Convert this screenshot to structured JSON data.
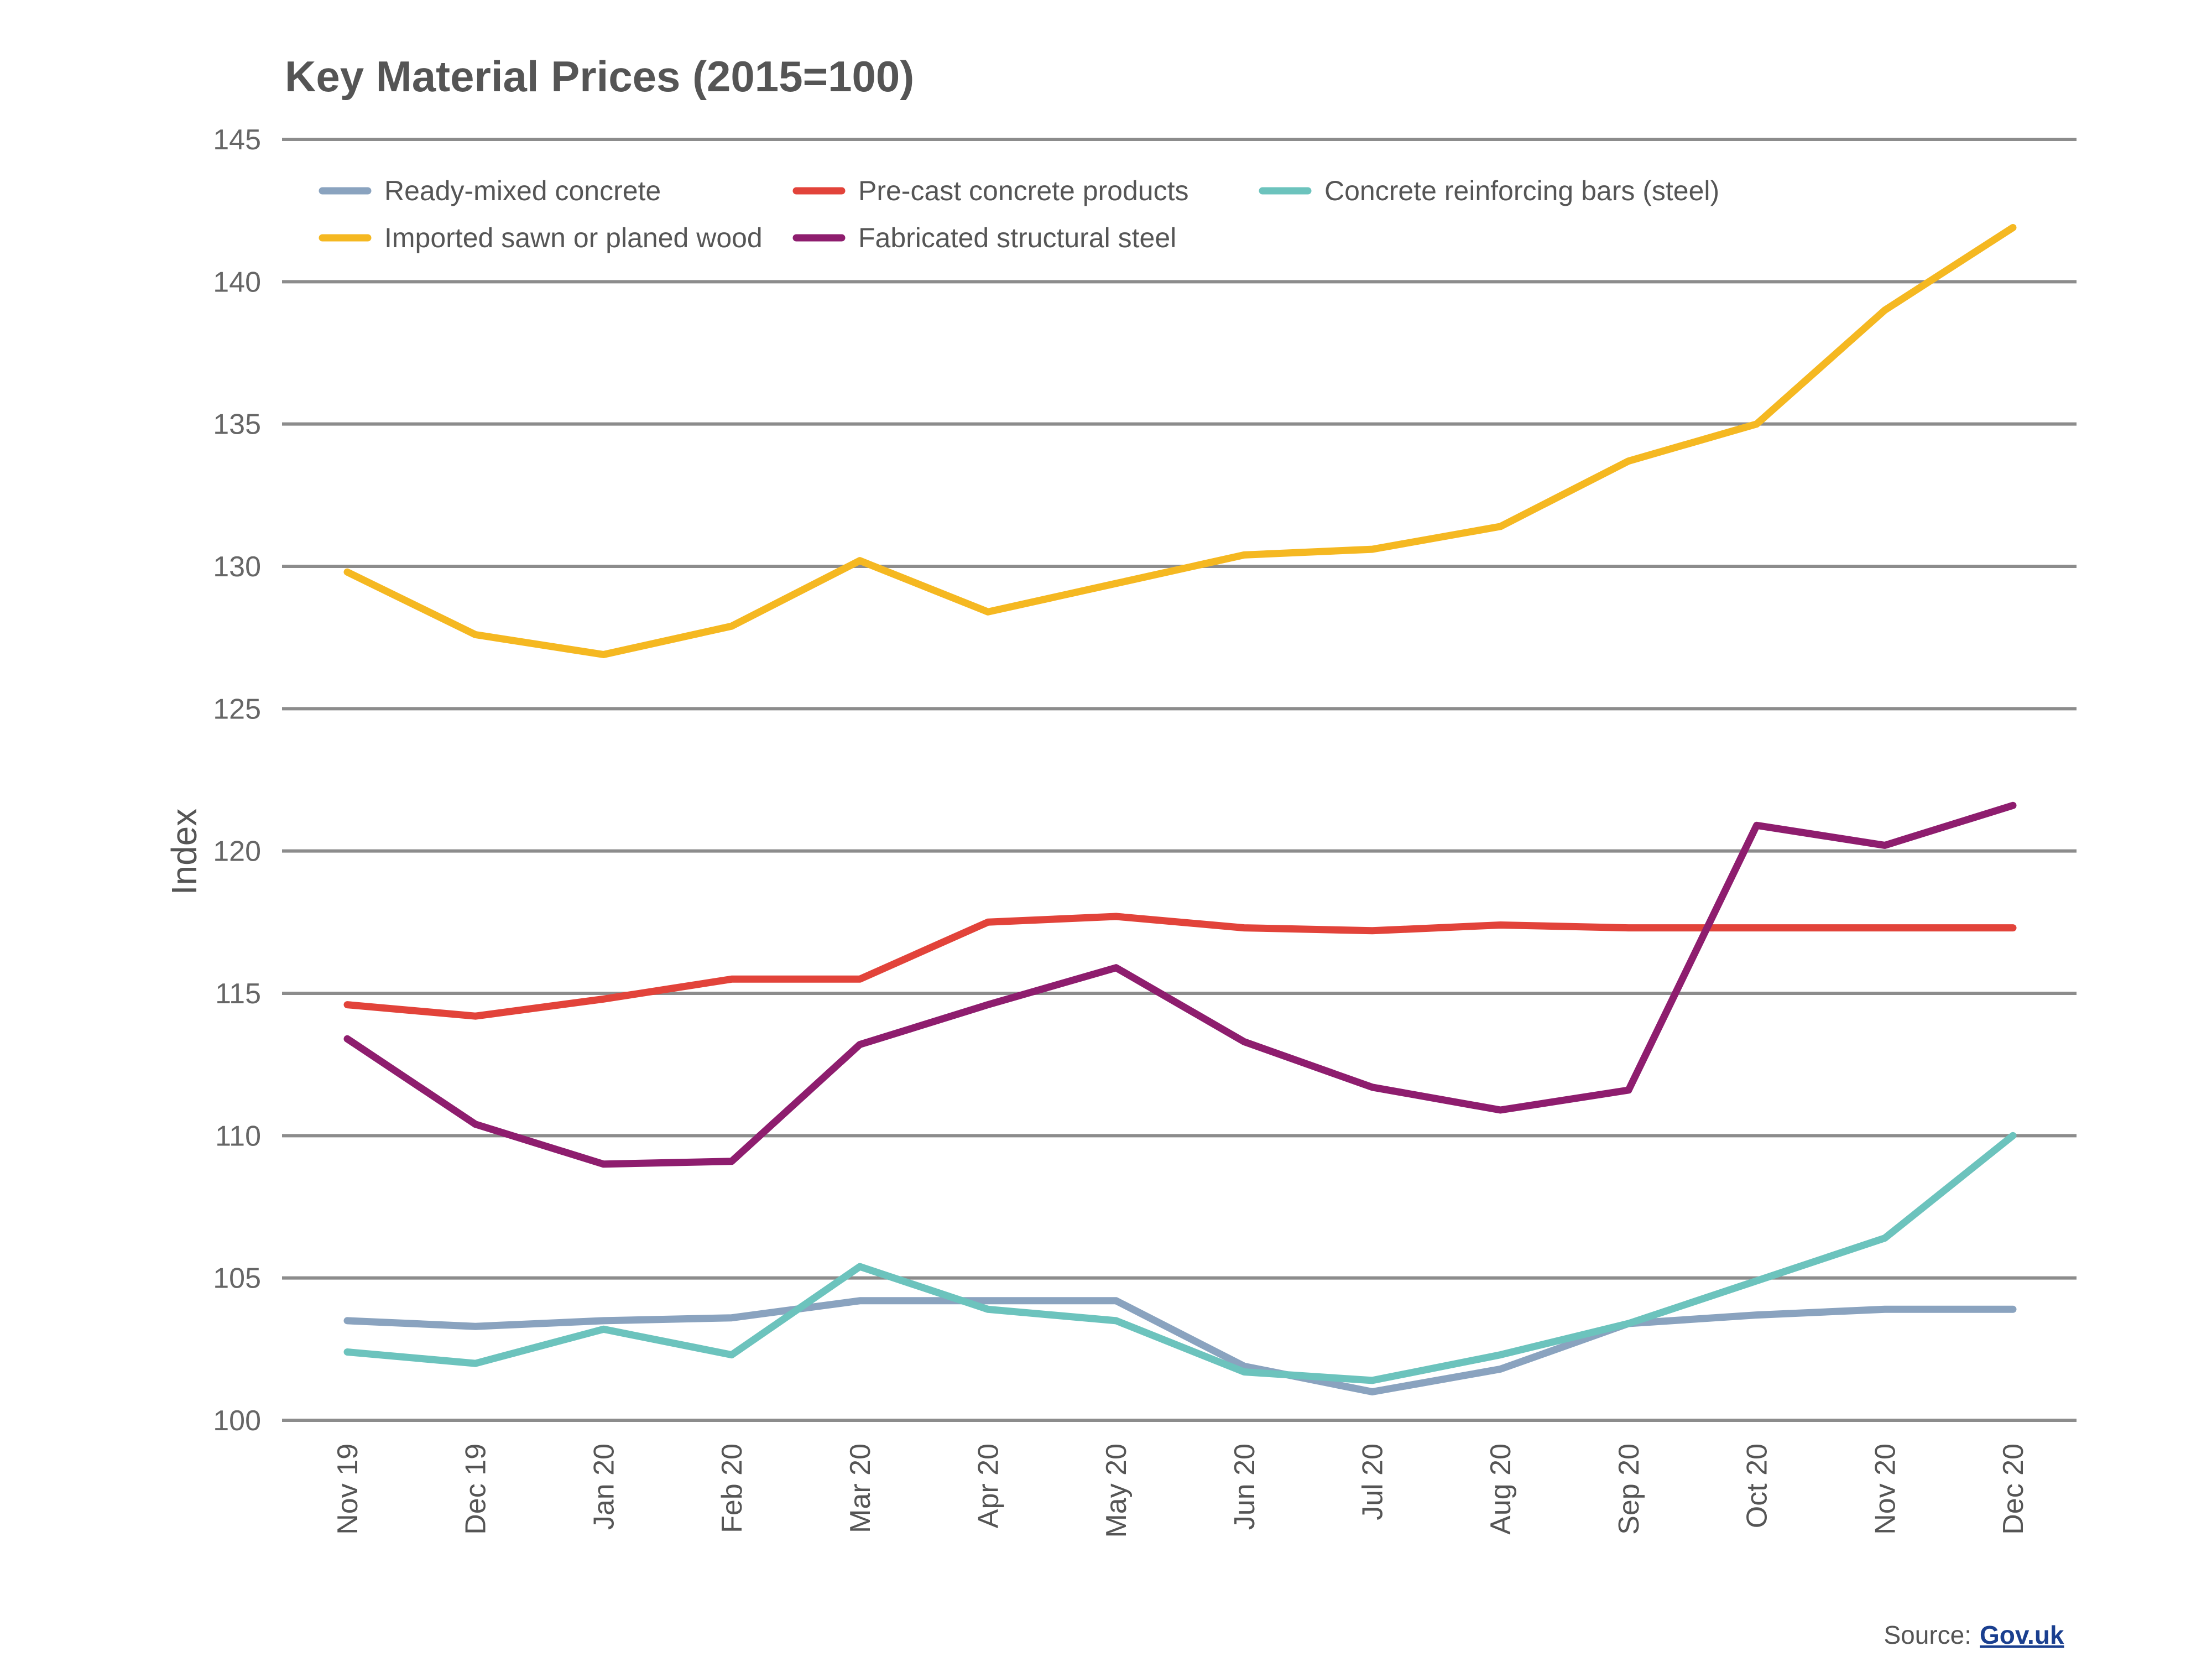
{
  "chart_data": {
    "type": "line",
    "title": "Key Material Prices (2015=100)",
    "ylabel": "Index",
    "xlabel": "",
    "ylim": [
      100,
      145
    ],
    "yticks": [
      100,
      105,
      110,
      115,
      120,
      125,
      130,
      135,
      140,
      145
    ],
    "grid": true,
    "legend_position": "top-left",
    "categories": [
      "Nov 19",
      "Dec 19",
      "Jan 20",
      "Feb 20",
      "Mar 20",
      "Apr 20",
      "May 20",
      "Jun 20",
      "Jul 20",
      "Aug 20",
      "Sep 20",
      "Oct 20",
      "Nov 20",
      "Dec 20"
    ],
    "series": [
      {
        "name": "Ready-mixed concrete",
        "color": "#8aa3bf",
        "values": [
          103.5,
          103.3,
          103.5,
          103.6,
          104.2,
          104.2,
          104.2,
          101.9,
          101.0,
          101.8,
          103.4,
          103.7,
          103.9,
          103.9
        ]
      },
      {
        "name": "Pre-cast concrete products",
        "color": "#e2433a",
        "values": [
          114.6,
          114.2,
          114.8,
          115.5,
          115.5,
          117.5,
          117.7,
          117.3,
          117.2,
          117.4,
          117.3,
          117.3,
          117.3,
          117.3
        ]
      },
      {
        "name": "Concrete reinforcing bars (steel)",
        "color": "#6cc3bd",
        "values": [
          102.4,
          102.0,
          103.2,
          102.3,
          105.4,
          103.9,
          103.5,
          101.7,
          101.4,
          102.3,
          103.4,
          104.9,
          106.4,
          110.0
        ]
      },
      {
        "name": "Imported sawn or planed wood",
        "color": "#f5b821",
        "values": [
          129.8,
          127.6,
          126.9,
          127.9,
          130.2,
          128.4,
          129.4,
          130.4,
          130.6,
          131.4,
          133.7,
          135.0,
          139.0,
          141.9
        ]
      },
      {
        "name": "Fabricated structural steel",
        "color": "#8e1d6e",
        "values": [
          113.4,
          110.4,
          109.0,
          109.1,
          113.2,
          114.6,
          115.9,
          113.3,
          111.7,
          110.9,
          111.6,
          120.9,
          120.2,
          121.6
        ]
      }
    ],
    "source_label": "Source:",
    "source_link": "Gov.uk"
  }
}
